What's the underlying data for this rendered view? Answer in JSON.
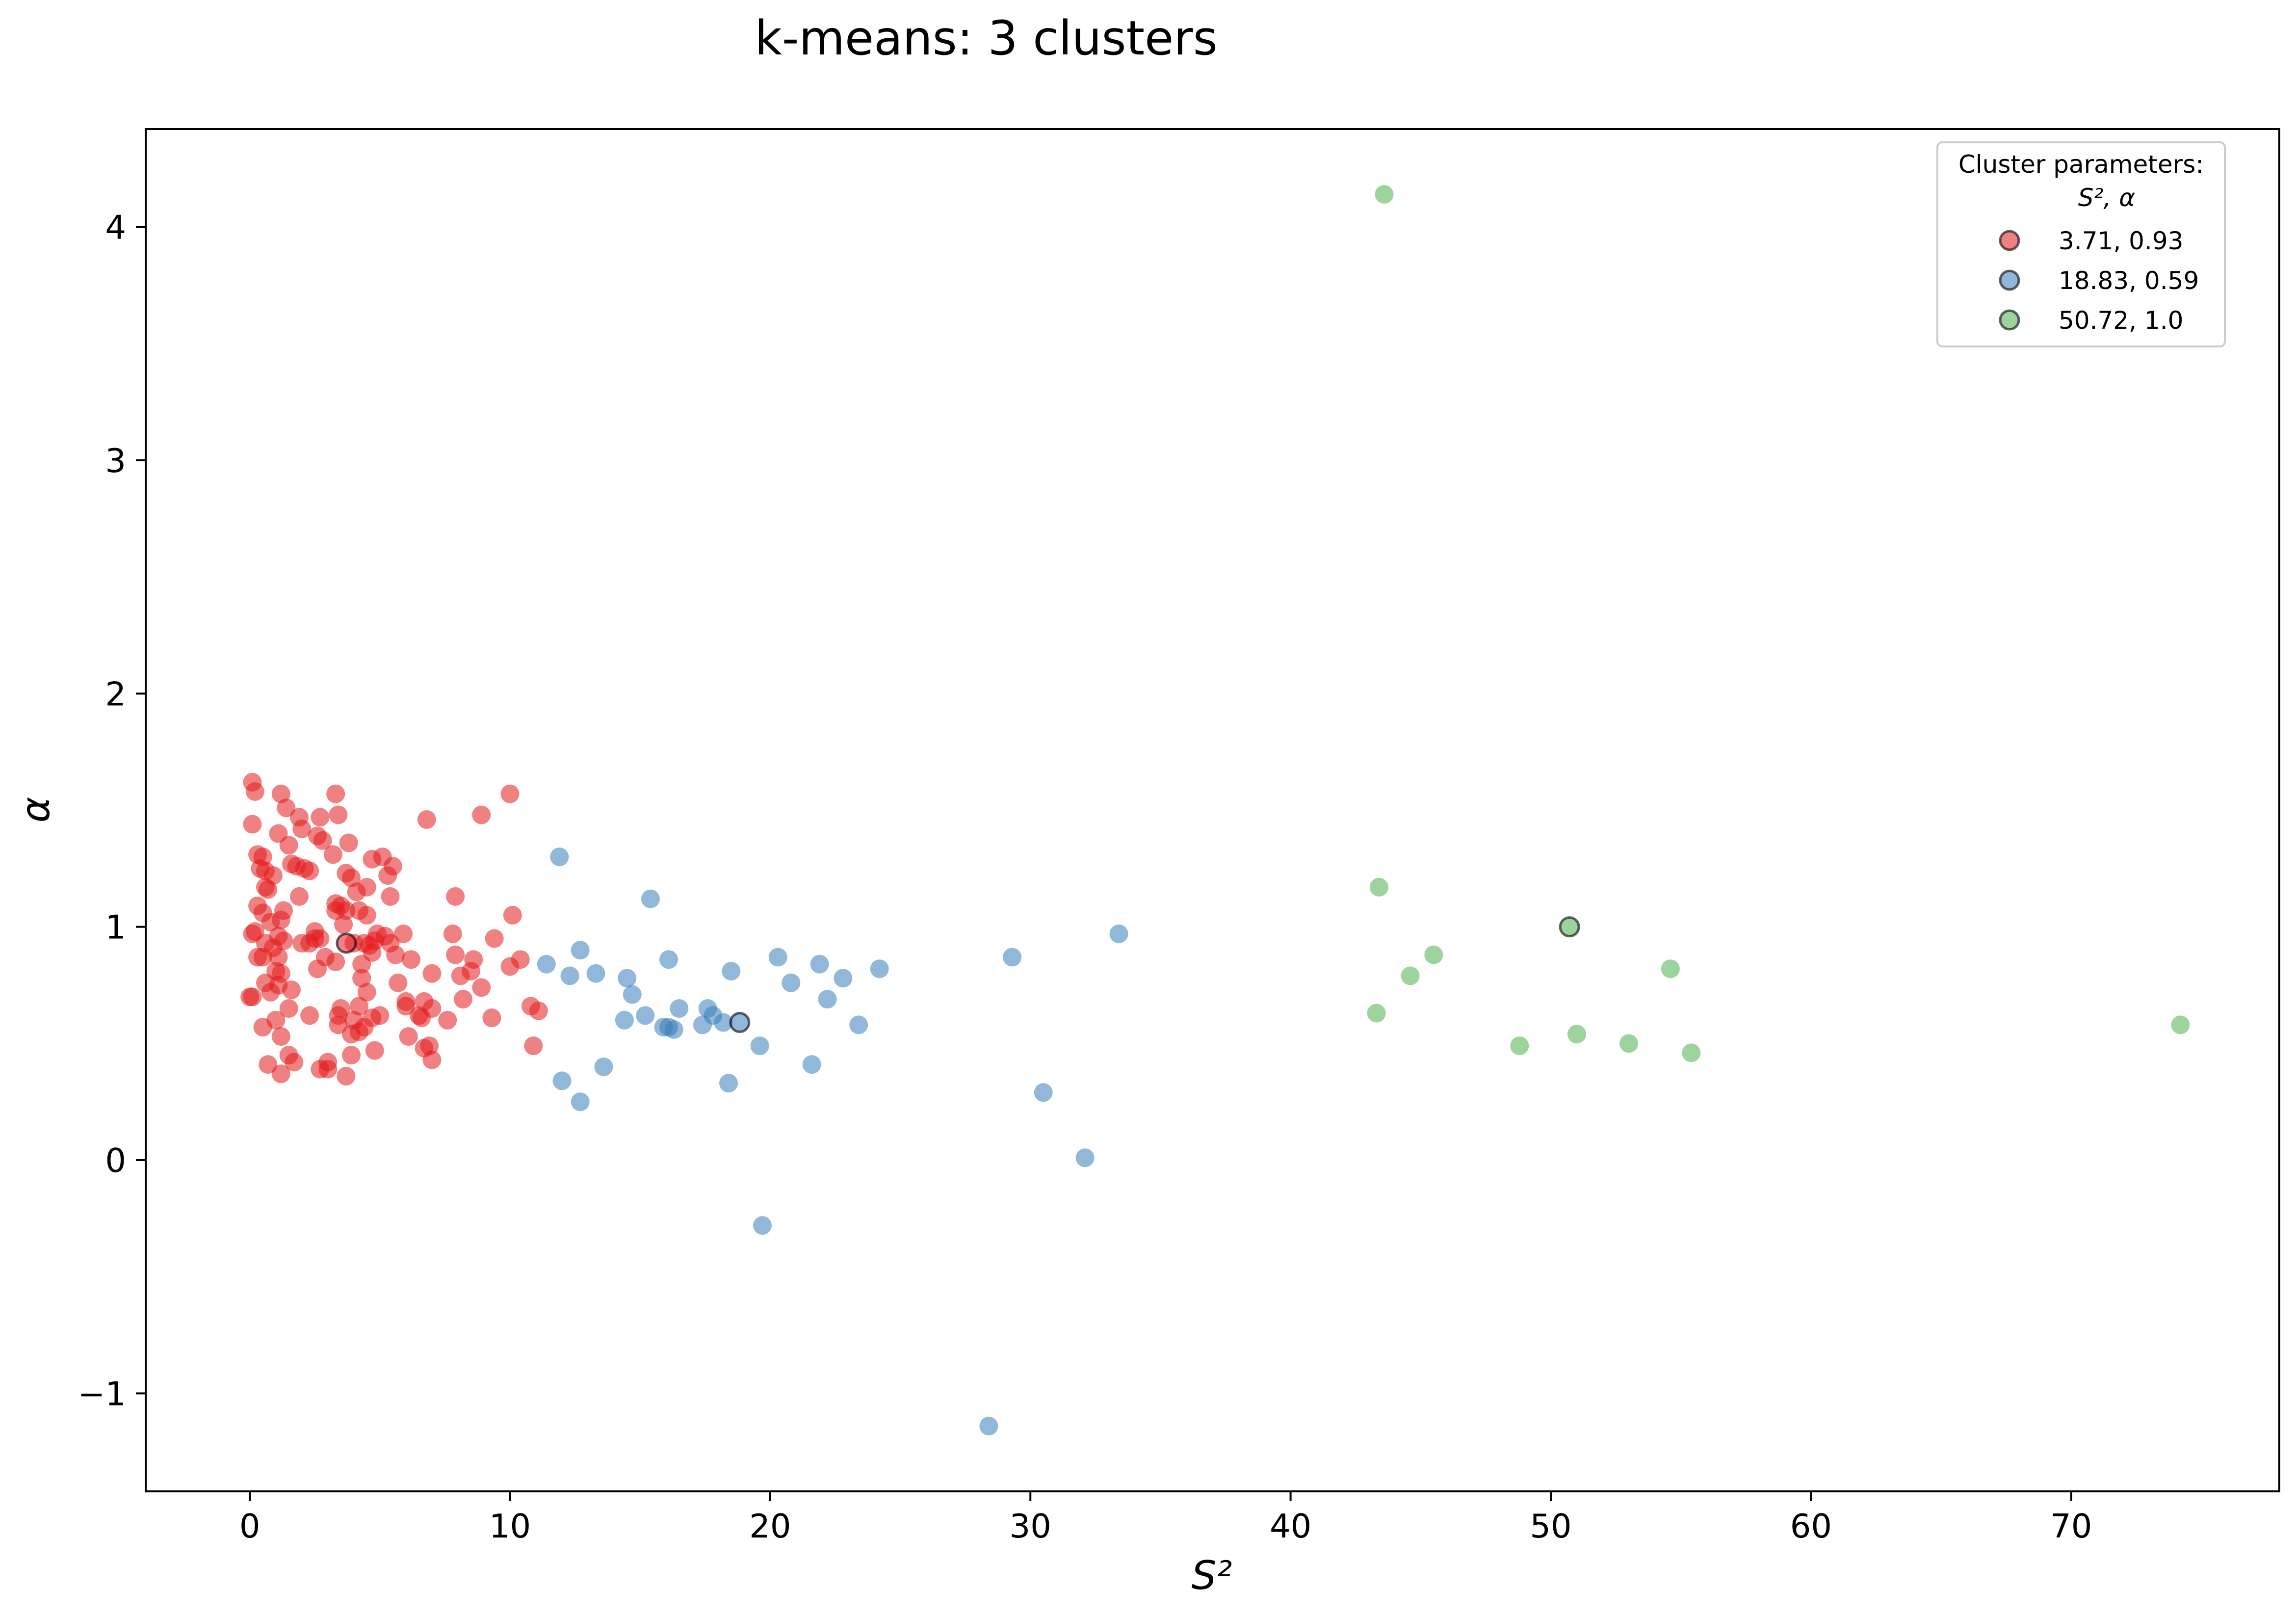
{
  "chart_data": {
    "type": "scatter",
    "title": "k-means: 3 clusters",
    "xlabel": "S²",
    "ylabel": "α",
    "xlim": [
      -4,
      78
    ],
    "ylim": [
      -1.42,
      4.42
    ],
    "xticks": [
      0,
      10,
      20,
      30,
      40,
      50,
      60,
      70
    ],
    "yticks": [
      -1,
      0,
      1,
      2,
      3,
      4
    ],
    "ytick_labels": [
      "−1",
      "0",
      "1",
      "2",
      "3",
      "4"
    ],
    "grid": false,
    "legend": {
      "position": "top-right",
      "title_line1": "Cluster parameters:",
      "title_line2": "S²,   α"
    },
    "series": [
      {
        "name": "3.71, 0.93",
        "color": "#e41a1c",
        "centroid": [
          3.71,
          0.93
        ],
        "points": [
          [
            0.1,
            1.62
          ],
          [
            0.2,
            1.58
          ],
          [
            0.1,
            1.44
          ],
          [
            0.3,
            1.31
          ],
          [
            0.5,
            1.3
          ],
          [
            0.4,
            1.25
          ],
          [
            0.6,
            1.24
          ],
          [
            0.9,
            1.22
          ],
          [
            0.6,
            1.17
          ],
          [
            0.7,
            1.16
          ],
          [
            0.3,
            1.09
          ],
          [
            0.5,
            1.06
          ],
          [
            0.8,
            1.02
          ],
          [
            0.2,
            0.98
          ],
          [
            0.1,
            0.97
          ],
          [
            0.6,
            0.93
          ],
          [
            0.9,
            0.91
          ],
          [
            0.3,
            0.87
          ],
          [
            0.5,
            0.87
          ],
          [
            0.6,
            0.76
          ],
          [
            1.0,
            0.81
          ],
          [
            0.8,
            0.72
          ],
          [
            0.1,
            0.7
          ],
          [
            0.0,
            0.7
          ],
          [
            0.5,
            0.57
          ],
          [
            0.7,
            0.41
          ],
          [
            1.2,
            1.57
          ],
          [
            1.4,
            1.51
          ],
          [
            1.1,
            1.4
          ],
          [
            1.5,
            1.35
          ],
          [
            1.6,
            1.27
          ],
          [
            1.8,
            1.26
          ],
          [
            1.3,
            1.07
          ],
          [
            1.2,
            1.03
          ],
          [
            1.1,
            0.96
          ],
          [
            1.3,
            0.94
          ],
          [
            1.1,
            0.87
          ],
          [
            1.2,
            0.8
          ],
          [
            1.1,
            0.75
          ],
          [
            1.6,
            0.73
          ],
          [
            1.5,
            0.65
          ],
          [
            1.0,
            0.6
          ],
          [
            1.2,
            0.53
          ],
          [
            1.5,
            0.45
          ],
          [
            1.7,
            0.42
          ],
          [
            1.2,
            0.37
          ],
          [
            1.9,
            1.47
          ],
          [
            2.0,
            1.42
          ],
          [
            2.1,
            1.25
          ],
          [
            2.3,
            1.24
          ],
          [
            1.9,
            1.13
          ],
          [
            2.0,
            0.93
          ],
          [
            2.3,
            0.93
          ],
          [
            2.5,
            0.95
          ],
          [
            2.6,
            0.82
          ],
          [
            2.3,
            0.62
          ],
          [
            2.7,
            1.47
          ],
          [
            2.6,
            1.39
          ],
          [
            2.8,
            1.37
          ],
          [
            2.5,
            0.98
          ],
          [
            2.7,
            0.95
          ],
          [
            2.9,
            0.87
          ],
          [
            2.7,
            0.39
          ],
          [
            3.0,
            0.42
          ],
          [
            3.0,
            0.39
          ],
          [
            3.3,
            1.57
          ],
          [
            3.4,
            1.48
          ],
          [
            3.2,
            1.31
          ],
          [
            3.3,
            1.1
          ],
          [
            3.5,
            1.09
          ],
          [
            3.3,
            1.07
          ],
          [
            3.7,
            1.07
          ],
          [
            3.6,
            1.01
          ],
          [
            3.3,
            0.85
          ],
          [
            3.5,
            0.65
          ],
          [
            3.4,
            0.62
          ],
          [
            3.4,
            0.58
          ],
          [
            3.7,
            0.36
          ],
          [
            3.8,
            1.36
          ],
          [
            3.7,
            1.23
          ],
          [
            3.9,
            1.21
          ],
          [
            4.1,
            1.15
          ],
          [
            4.2,
            1.07
          ],
          [
            4.0,
            0.93
          ],
          [
            4.4,
            0.93
          ],
          [
            4.3,
            0.84
          ],
          [
            4.3,
            0.78
          ],
          [
            4.5,
            0.72
          ],
          [
            4.2,
            0.66
          ],
          [
            4.0,
            0.6
          ],
          [
            4.4,
            0.57
          ],
          [
            3.9,
            0.54
          ],
          [
            4.2,
            0.55
          ],
          [
            3.9,
            0.45
          ],
          [
            4.5,
            1.17
          ],
          [
            4.7,
            1.29
          ],
          [
            4.5,
            1.05
          ],
          [
            4.9,
            0.97
          ],
          [
            4.8,
            0.94
          ],
          [
            4.6,
            0.92
          ],
          [
            4.7,
            0.89
          ],
          [
            4.7,
            0.61
          ],
          [
            4.8,
            0.47
          ],
          [
            5.1,
            1.3
          ],
          [
            5.5,
            1.26
          ],
          [
            5.3,
            1.22
          ],
          [
            5.4,
            1.13
          ],
          [
            5.2,
            0.96
          ],
          [
            5.4,
            0.93
          ],
          [
            5.0,
            0.62
          ],
          [
            5.6,
            0.88
          ],
          [
            5.7,
            0.76
          ],
          [
            5.9,
            0.97
          ],
          [
            6.0,
            0.68
          ],
          [
            6.2,
            0.86
          ],
          [
            6.0,
            0.66
          ],
          [
            6.1,
            0.53
          ],
          [
            6.5,
            0.62
          ],
          [
            6.7,
            0.68
          ],
          [
            6.6,
            0.61
          ],
          [
            6.7,
            0.48
          ],
          [
            6.8,
            1.46
          ],
          [
            6.9,
            0.49
          ],
          [
            7.0,
            0.8
          ],
          [
            7.0,
            0.43
          ],
          [
            7.0,
            0.65
          ],
          [
            7.6,
            0.6
          ],
          [
            7.9,
            1.13
          ],
          [
            7.8,
            0.97
          ],
          [
            7.9,
            0.88
          ],
          [
            8.1,
            0.79
          ],
          [
            8.2,
            0.69
          ],
          [
            8.5,
            0.81
          ],
          [
            8.6,
            0.86
          ],
          [
            8.9,
            1.48
          ],
          [
            8.9,
            0.74
          ],
          [
            9.3,
            0.61
          ],
          [
            9.4,
            0.95
          ],
          [
            10.0,
            1.57
          ],
          [
            10.0,
            0.83
          ],
          [
            10.1,
            1.05
          ],
          [
            10.4,
            0.86
          ],
          [
            10.8,
            0.66
          ],
          [
            10.9,
            0.49
          ],
          [
            11.1,
            0.64
          ]
        ]
      },
      {
        "name": "18.83, 0.59",
        "color": "#377eb8",
        "centroid": [
          18.83,
          0.59
        ],
        "points": [
          [
            11.4,
            0.84
          ],
          [
            11.9,
            1.3
          ],
          [
            12.0,
            0.34
          ],
          [
            12.3,
            0.79
          ],
          [
            12.7,
            0.9
          ],
          [
            12.7,
            0.25
          ],
          [
            13.3,
            0.8
          ],
          [
            13.6,
            0.4
          ],
          [
            14.4,
            0.6
          ],
          [
            14.5,
            0.78
          ],
          [
            14.7,
            0.71
          ],
          [
            15.2,
            0.62
          ],
          [
            15.4,
            1.12
          ],
          [
            15.9,
            0.57
          ],
          [
            16.1,
            0.86
          ],
          [
            16.1,
            0.57
          ],
          [
            16.3,
            0.56
          ],
          [
            16.5,
            0.65
          ],
          [
            17.4,
            0.58
          ],
          [
            17.6,
            0.65
          ],
          [
            17.8,
            0.62
          ],
          [
            18.2,
            0.59
          ],
          [
            18.5,
            0.81
          ],
          [
            18.4,
            0.33
          ],
          [
            19.6,
            0.49
          ],
          [
            19.7,
            -0.28
          ],
          [
            20.3,
            0.87
          ],
          [
            20.8,
            0.76
          ],
          [
            21.6,
            0.41
          ],
          [
            21.9,
            0.84
          ],
          [
            22.2,
            0.69
          ],
          [
            22.8,
            0.78
          ],
          [
            23.4,
            0.58
          ],
          [
            24.2,
            0.82
          ],
          [
            28.4,
            -1.14
          ],
          [
            29.3,
            0.87
          ],
          [
            30.5,
            0.29
          ],
          [
            32.1,
            0.01
          ],
          [
            33.4,
            0.97
          ]
        ]
      },
      {
        "name": "50.72, 1.0",
        "color": "#4daf4a",
        "centroid": [
          50.72,
          1.0
        ],
        "points": [
          [
            43.6,
            4.14
          ],
          [
            43.4,
            1.17
          ],
          [
            43.3,
            0.63
          ],
          [
            44.6,
            0.79
          ],
          [
            45.5,
            0.88
          ],
          [
            48.8,
            0.49
          ],
          [
            51.0,
            0.54
          ],
          [
            53.0,
            0.5
          ],
          [
            54.6,
            0.82
          ],
          [
            55.4,
            0.46
          ],
          [
            74.2,
            0.58
          ]
        ]
      }
    ]
  }
}
